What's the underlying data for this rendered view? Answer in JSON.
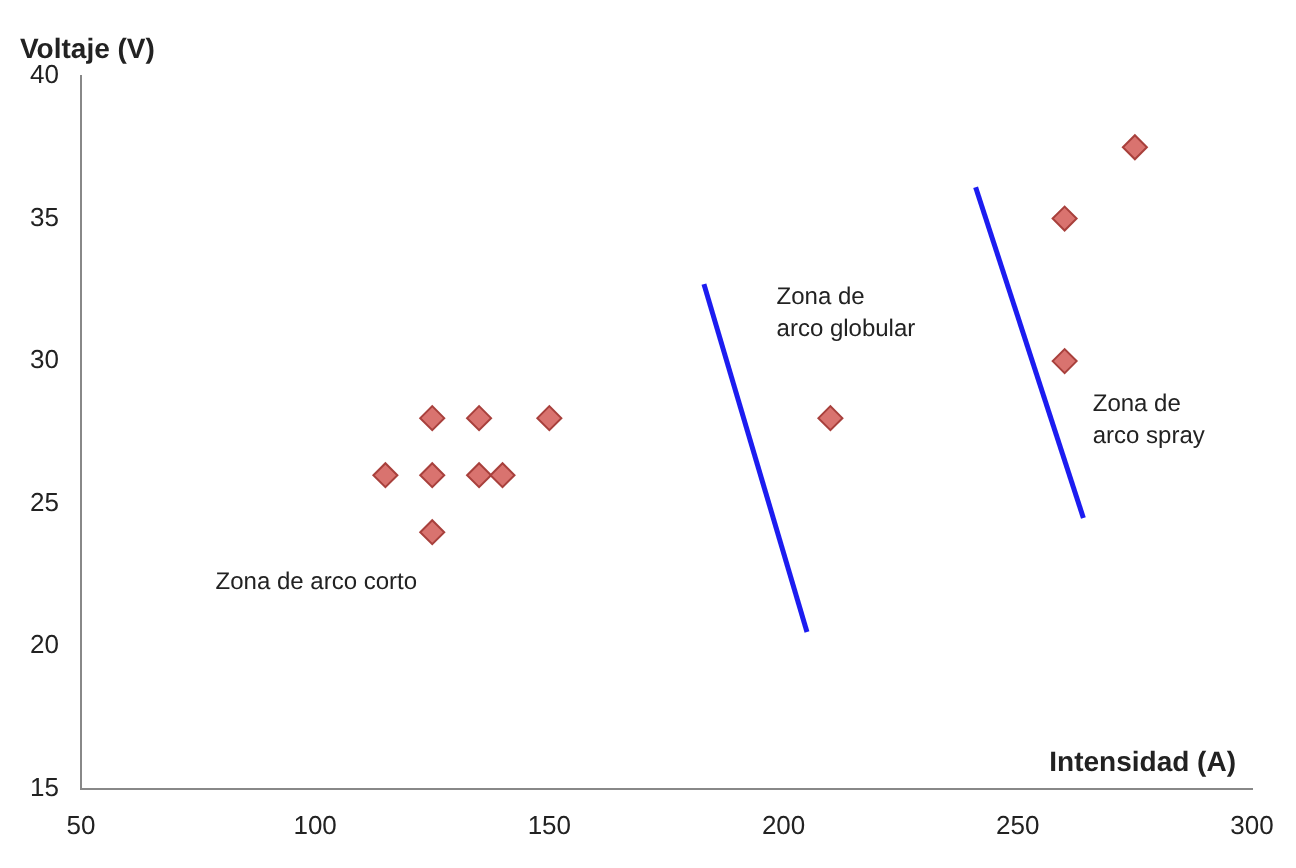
{
  "chart_data": {
    "type": "scatter",
    "xlabel": "Intensidad (A)",
    "ylabel": "Voltaje (V)",
    "xlim": [
      50,
      300
    ],
    "xticks": [
      50,
      100,
      150,
      200,
      250,
      300
    ],
    "ylim": [
      15,
      40
    ],
    "yticks": [
      15,
      20,
      25,
      30,
      35,
      40
    ],
    "grid": false,
    "legend": false,
    "series": [
      {
        "marker": "diamond",
        "color": "#d9736f",
        "x": [
          115,
          125,
          125,
          125,
          135,
          135,
          140,
          150,
          210,
          260,
          260,
          275
        ],
        "values": [
          26,
          28,
          26,
          24,
          28,
          26,
          26,
          28,
          28,
          35,
          30,
          37.5
        ]
      },
      {
        "type": "line",
        "marker": "none",
        "color": "#1c1cf0",
        "x": [
          183,
          205
        ],
        "values": [
          32.7,
          20.5
        ]
      },
      {
        "type": "line",
        "marker": "none",
        "color": "#1c1cf0",
        "x": [
          241,
          264
        ],
        "values": [
          36.1,
          24.5
        ]
      }
    ],
    "annotations": [
      "Zona de arco corto",
      "Zona de\narco globular",
      "Zona de\narco spray"
    ]
  }
}
